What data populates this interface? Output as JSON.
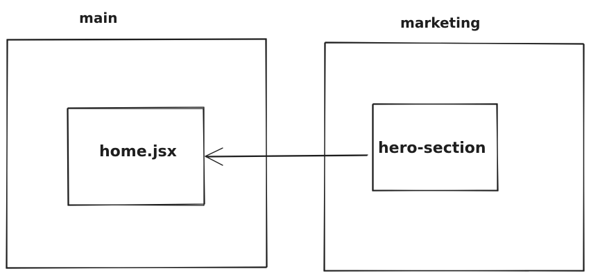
{
  "diagram": {
    "stroke_color": "#1e1e1e",
    "background": "#ffffff",
    "groups": {
      "main": {
        "label": "main"
      },
      "marketing": {
        "label": "marketing"
      }
    },
    "nodes": {
      "home": {
        "label": "home.jsx"
      },
      "hero": {
        "label": "hero-section"
      }
    },
    "edges": [
      {
        "from": "hero-section",
        "to": "home.jsx",
        "arrow": "end"
      }
    ]
  }
}
